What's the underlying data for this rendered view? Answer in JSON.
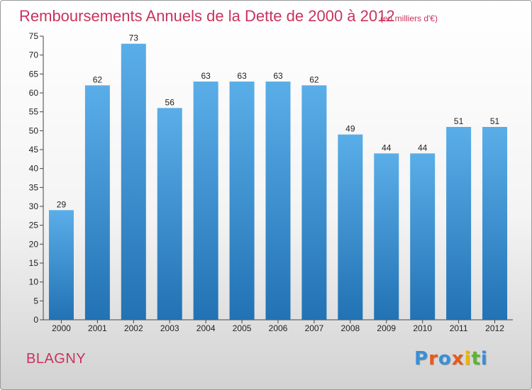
{
  "header": {
    "title": "Remboursements Annuels de la Dette de 2000 à 2012",
    "unit": "(en milliers d'€)"
  },
  "footer": {
    "commune": "BLAGNY",
    "brand": "Proxiti",
    "brand_colors": [
      "#3a8fd6",
      "#e85a1c",
      "#3a8fd6",
      "#e85a1c",
      "#f0b400",
      "#5cb531",
      "#3a8fd6"
    ]
  },
  "chart_data": {
    "type": "bar",
    "title": "Remboursements Annuels de la Dette de 2000 à 2012",
    "xlabel": "",
    "ylabel": "",
    "categories": [
      "2000",
      "2001",
      "2002",
      "2003",
      "2004",
      "2005",
      "2006",
      "2007",
      "2008",
      "2009",
      "2010",
      "2011",
      "2012"
    ],
    "values": [
      29,
      62,
      73,
      56,
      63,
      63,
      63,
      62,
      49,
      44,
      44,
      51,
      51
    ],
    "ylim": [
      0,
      75
    ],
    "yticks": [
      0,
      5,
      10,
      15,
      20,
      25,
      30,
      35,
      40,
      45,
      50,
      55,
      60,
      65,
      70,
      75
    ],
    "grid": false,
    "bar_color_top": "#5aaee8",
    "bar_color_bottom": "#2272b4"
  }
}
